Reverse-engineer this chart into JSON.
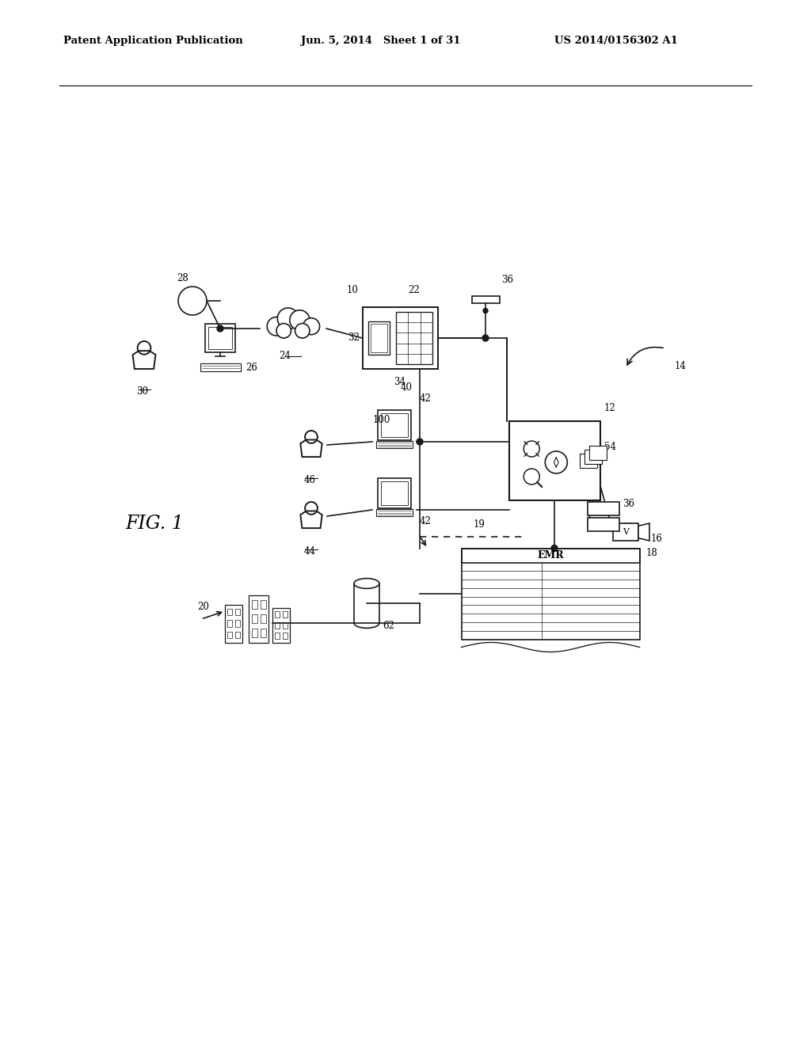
{
  "bg_color": "#ffffff",
  "header_left": "Patent Application Publication",
  "header_mid": "Jun. 5, 2014   Sheet 1 of 31",
  "header_right": "US 2014/0156302 A1",
  "fig_label": "FIG. 1"
}
